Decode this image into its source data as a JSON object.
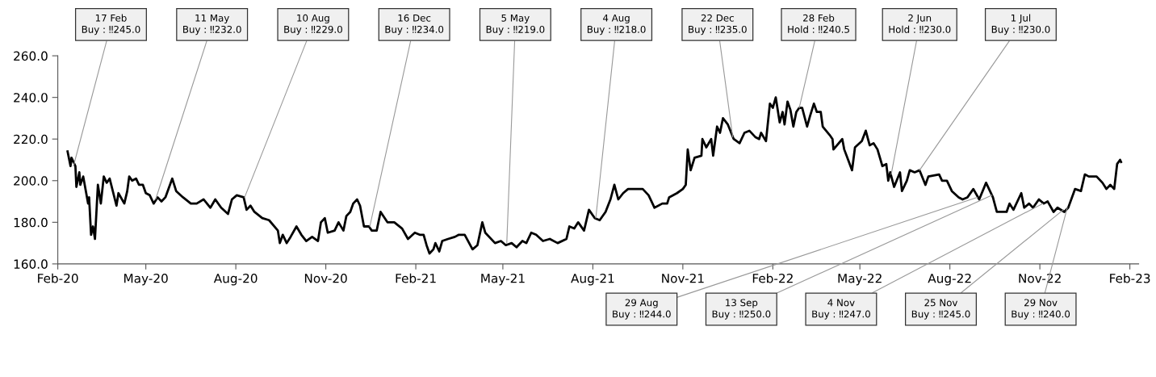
{
  "chart_data": {
    "type": "line",
    "x": [
      "2020-02-11",
      "2020-02-14",
      "2020-02-15",
      "2020-02-19",
      "2020-02-20",
      "2020-02-23",
      "2020-02-24",
      "2020-02-27",
      "2020-03-03",
      "2020-03-04",
      "2020-03-06",
      "2020-03-08",
      "2020-03-10",
      "2020-03-13",
      "2020-03-16",
      "2020-03-19",
      "2020-03-22",
      "2020-03-25",
      "2020-04-01",
      "2020-04-03",
      "2020-04-09",
      "2020-04-12",
      "2020-04-14",
      "2020-04-17",
      "2020-04-21",
      "2020-04-24",
      "2020-04-28",
      "2020-05-01",
      "2020-05-05",
      "2020-05-09",
      "2020-05-13",
      "2020-05-17",
      "2020-05-21",
      "2020-05-28",
      "2020-06-01",
      "2020-06-08",
      "2020-06-16",
      "2020-06-22",
      "2020-06-29",
      "2020-07-06",
      "2020-07-11",
      "2020-07-17",
      "2020-07-24",
      "2020-07-28",
      "2020-08-02",
      "2020-08-09",
      "2020-08-12",
      "2020-08-16",
      "2020-08-20",
      "2020-08-28",
      "2020-09-04",
      "2020-09-13",
      "2020-09-15",
      "2020-09-18",
      "2020-09-22",
      "2020-09-26",
      "2020-10-02",
      "2020-10-07",
      "2020-10-12",
      "2020-10-18",
      "2020-10-24",
      "2020-10-27",
      "2020-10-31",
      "2020-11-03",
      "2020-11-10",
      "2020-11-14",
      "2020-11-19",
      "2020-11-22",
      "2020-11-26",
      "2020-11-29",
      "2020-12-03",
      "2020-12-06",
      "2020-12-10",
      "2020-12-15",
      "2020-12-18",
      "2020-12-23",
      "2020-12-27",
      "2021-01-03",
      "2021-01-10",
      "2021-01-18",
      "2021-01-24",
      "2021-01-31",
      "2021-02-05",
      "2021-02-09",
      "2021-02-12",
      "2021-02-15",
      "2021-02-19",
      "2021-02-21",
      "2021-02-25",
      "2021-02-28",
      "2021-03-06",
      "2021-03-13",
      "2021-03-17",
      "2021-03-23",
      "2021-03-31",
      "2021-04-05",
      "2021-04-10",
      "2021-04-13",
      "2021-04-23",
      "2021-04-29",
      "2021-05-04",
      "2021-05-10",
      "2021-05-15",
      "2021-05-21",
      "2021-05-25",
      "2021-05-30",
      "2021-06-04",
      "2021-06-11",
      "2021-06-18",
      "2021-06-26",
      "2021-07-05",
      "2021-07-08",
      "2021-07-13",
      "2021-07-17",
      "2021-07-23",
      "2021-07-28",
      "2021-08-03",
      "2021-08-08",
      "2021-08-14",
      "2021-08-19",
      "2021-08-23",
      "2021-08-27",
      "2021-09-01",
      "2021-09-06",
      "2021-09-10",
      "2021-09-17",
      "2021-09-21",
      "2021-09-27",
      "2021-10-03",
      "2021-10-11",
      "2021-10-16",
      "2021-10-18",
      "2021-10-26",
      "2021-11-01",
      "2021-11-04",
      "2021-11-06",
      "2021-11-09",
      "2021-11-13",
      "2021-11-20",
      "2021-11-21",
      "2021-11-25",
      "2021-11-30",
      "2021-12-02",
      "2021-12-06",
      "2021-12-09",
      "2021-12-12",
      "2021-12-17",
      "2021-12-23",
      "2021-12-29",
      "2022-01-03",
      "2022-01-08",
      "2022-01-14",
      "2022-01-18",
      "2022-01-20",
      "2022-01-25",
      "2022-01-29",
      "2022-02-01",
      "2022-02-04",
      "2022-02-08",
      "2022-02-11",
      "2022-02-13",
      "2022-02-16",
      "2022-02-19",
      "2022-02-22",
      "2022-02-25",
      "2022-02-28",
      "2022-03-03",
      "2022-03-08",
      "2022-03-11",
      "2022-03-15",
      "2022-03-18",
      "2022-03-22",
      "2022-03-24",
      "2022-03-31",
      "2022-04-03",
      "2022-04-04",
      "2022-04-13",
      "2022-04-15",
      "2022-04-19",
      "2022-04-23",
      "2022-04-26",
      "2022-05-03",
      "2022-05-07",
      "2022-05-11",
      "2022-05-15",
      "2022-05-19",
      "2022-05-24",
      "2022-05-28",
      "2022-05-30",
      "2022-06-01",
      "2022-06-05",
      "2022-06-11",
      "2022-06-13",
      "2022-06-18",
      "2022-06-21",
      "2022-06-26",
      "2022-07-01",
      "2022-07-07",
      "2022-07-10",
      "2022-07-21",
      "2022-07-24",
      "2022-07-29",
      "2022-08-03",
      "2022-08-10",
      "2022-08-14",
      "2022-08-19",
      "2022-08-25",
      "2022-08-31",
      "2022-09-07",
      "2022-09-14",
      "2022-09-18",
      "2022-09-28",
      "2022-10-01",
      "2022-10-05",
      "2022-10-13",
      "2022-10-16",
      "2022-10-21",
      "2022-10-25",
      "2022-10-31",
      "2022-11-05",
      "2022-11-09",
      "2022-11-15",
      "2022-11-19",
      "2022-11-26",
      "2022-11-30",
      "2022-12-07",
      "2022-12-13",
      "2022-12-17",
      "2022-12-21",
      "2022-12-29",
      "2023-01-04",
      "2023-01-08",
      "2023-01-12",
      "2023-01-16",
      "2023-01-19",
      "2023-01-22",
      "2023-01-23"
    ],
    "series": [
      {
        "color": "#000000",
        "values": [
          214,
          207,
          211,
          207,
          197,
          204,
          198,
          202,
          189,
          192,
          174,
          178,
          172,
          198,
          189,
          202,
          199,
          201,
          188,
          194,
          189,
          195,
          202,
          200,
          201,
          198,
          198,
          194,
          193,
          189,
          192,
          190,
          192,
          201,
          195,
          192,
          189,
          189,
          191,
          187,
          191,
          187,
          184,
          191,
          193,
          192,
          186,
          188,
          185,
          182,
          181,
          176,
          170,
          174,
          170,
          173,
          178,
          174,
          171,
          173,
          171,
          180,
          182,
          175,
          176,
          180,
          176,
          183,
          185,
          189,
          191,
          188,
          178,
          178,
          176,
          176,
          185,
          180,
          180,
          177,
          172,
          175,
          174,
          174,
          169,
          165,
          167,
          170,
          166,
          171,
          172,
          173,
          174,
          174,
          167,
          169,
          180,
          175,
          170,
          171,
          169,
          170,
          168,
          171,
          170,
          175,
          174,
          171,
          172,
          170,
          172,
          178,
          177,
          180,
          176,
          186,
          182,
          181,
          185,
          191,
          198,
          191,
          194,
          196,
          196,
          196,
          196,
          193,
          187,
          189,
          189,
          192,
          194,
          196,
          198,
          215,
          205,
          211,
          212,
          220,
          216,
          220,
          212,
          226,
          223,
          230,
          227,
          220,
          218,
          223,
          224,
          221,
          220,
          223,
          219,
          237,
          235,
          240,
          228,
          233,
          227,
          238,
          234,
          226,
          233,
          235,
          235,
          226,
          231,
          237,
          233,
          233,
          226,
          222,
          220,
          215,
          220,
          215,
          210,
          205,
          216,
          219,
          224,
          217,
          218,
          215,
          207,
          208,
          200,
          204,
          197,
          204,
          195,
          200,
          205,
          204,
          205,
          198,
          202,
          203,
          200,
          200,
          195,
          192,
          191,
          192,
          196,
          191,
          199,
          192,
          185,
          185,
          189,
          186,
          194,
          187,
          189,
          187,
          191,
          189,
          190,
          185,
          187,
          185,
          187,
          196,
          195,
          203,
          202,
          202,
          199,
          196,
          198,
          196,
          208,
          210,
          209
        ]
      }
    ],
    "xlim": [
      "2020-02-01",
      "2023-02-10"
    ],
    "xticks": [
      {
        "value": "2020-02-01",
        "label": "Feb-20"
      },
      {
        "value": "2020-05-01",
        "label": "May-20"
      },
      {
        "value": "2020-08-01",
        "label": "Aug-20"
      },
      {
        "value": "2020-11-01",
        "label": "Nov-20"
      },
      {
        "value": "2021-02-01",
        "label": "Feb-21"
      },
      {
        "value": "2021-05-01",
        "label": "May-21"
      },
      {
        "value": "2021-08-01",
        "label": "Aug-21"
      },
      {
        "value": "2021-11-01",
        "label": "Nov-21"
      },
      {
        "value": "2022-02-01",
        "label": "Feb-22"
      },
      {
        "value": "2022-05-01",
        "label": "May-22"
      },
      {
        "value": "2022-08-01",
        "label": "Aug-22"
      },
      {
        "value": "2022-11-01",
        "label": "Nov-22"
      },
      {
        "value": "2023-02-01",
        "label": "Feb-23"
      }
    ],
    "ylim": [
      160,
      260
    ],
    "yticks": [
      {
        "value": 160,
        "label": "160.0"
      },
      {
        "value": 180,
        "label": "180.0"
      },
      {
        "value": 200,
        "label": "200.0"
      },
      {
        "value": 220,
        "label": "220.0"
      },
      {
        "value": 240,
        "label": "240.0"
      },
      {
        "value": 260,
        "label": "260.0"
      }
    ],
    "grid": false,
    "marker": "none",
    "line_style": "solid",
    "annotations": [
      {
        "text": "17 Feb\nBuy : ‼245.0",
        "x": "2020-02-17",
        "y": 207
      },
      {
        "text": "11 May\nBuy : ‼232.0",
        "x": "2020-05-11",
        "y": 191
      },
      {
        "text": "10 Aug\nBuy : ‼229.0",
        "x": "2020-08-10",
        "y": 192
      },
      {
        "text": "16 Dec\nBuy : ‼234.0",
        "x": "2020-12-16",
        "y": 178
      },
      {
        "text": "5 May\nBuy : ‼219.0",
        "x": "2021-05-05",
        "y": 170
      },
      {
        "text": "4 Aug\nBuy : ‼218.0",
        "x": "2021-08-04",
        "y": 182
      },
      {
        "text": "22 Dec\nBuy : ‼235.0",
        "x": "2021-12-22",
        "y": 221
      },
      {
        "text": "28 Feb\nHold : ‼240.5",
        "x": "2022-02-28",
        "y": 235
      },
      {
        "text": "2 Jun\nHold : ‼230.0",
        "x": "2022-06-02",
        "y": 203
      },
      {
        "text": "1 Jul\nBuy : ‼230.0",
        "x": "2022-07-01",
        "y": 205
      },
      {
        "text": "29 Aug\nBuy : ‼244.0",
        "x": "2022-08-29",
        "y": 192
      },
      {
        "text": "13 Sep\nBuy : ‼250.0",
        "x": "2022-09-13",
        "y": 193
      },
      {
        "text": "4 Nov\nBuy : ‼247.0",
        "x": "2022-11-04",
        "y": 189
      },
      {
        "text": "25 Nov\nBuy : ‼245.0",
        "x": "2022-11-25",
        "y": 186
      },
      {
        "text": "29 Nov\nBuy : ‼240.0",
        "x": "2022-11-29",
        "y": 187
      }
    ]
  }
}
